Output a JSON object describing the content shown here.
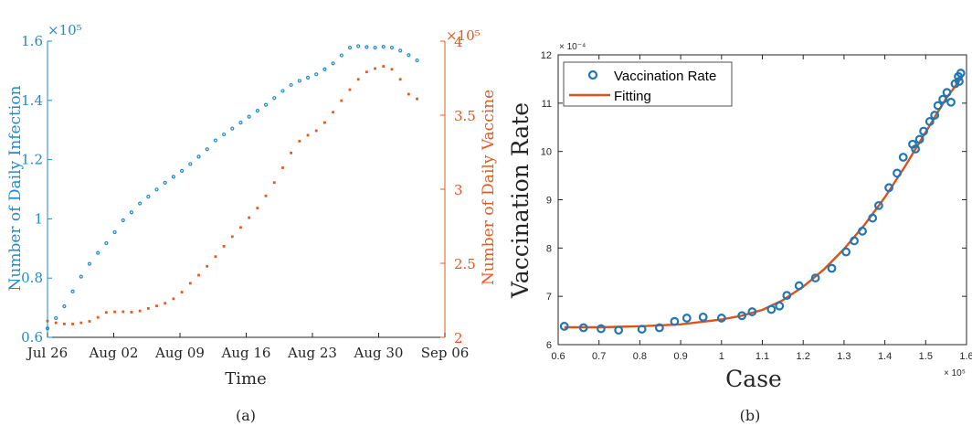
{
  "panels": {
    "a": {
      "caption": "(a)"
    },
    "b": {
      "caption": "(b)"
    }
  },
  "colors": {
    "infection": "#1f8bc9",
    "vaccine": "#e5581e",
    "rate_marker": "#1f77b4",
    "fitting": "#d9531e",
    "axis": "#262626"
  },
  "chart_data": [
    {
      "type": "scatter",
      "panel": "a",
      "xlabel": "Time",
      "ylabel_left": "Number of Daily Infection",
      "ylabel_right": "Number of Daily Vaccine",
      "left_exponent_label": "×10⁵",
      "right_exponent_label": "×10⁵",
      "x_ticks": [
        "Jul 26",
        "Aug 02",
        "Aug 09",
        "Aug 16",
        "Aug 23",
        "Aug 30",
        "Sep 06"
      ],
      "x_range_days": [
        0,
        42
      ],
      "ylim_left": [
        0.6,
        1.6
      ],
      "yticks_left": [
        "0.6",
        "0.8",
        "1",
        "1.2",
        "1.4",
        "1.6"
      ],
      "ylim_right": [
        2,
        4
      ],
      "yticks_right": [
        "2",
        "2.5",
        "3",
        "3.5",
        "4"
      ],
      "series": [
        {
          "axis": "left",
          "values": [
            0.63,
            0.665,
            0.705,
            0.755,
            0.805,
            0.848,
            0.885,
            0.918,
            0.955,
            0.995,
            1.022,
            1.052,
            1.075,
            1.099,
            1.122,
            1.142,
            1.162,
            1.185,
            1.21,
            1.235,
            1.265,
            1.285,
            1.305,
            1.325,
            1.345,
            1.365,
            1.385,
            1.408,
            1.432,
            1.452,
            1.466,
            1.477,
            1.488,
            1.505,
            1.525,
            1.552,
            1.578,
            1.583,
            1.58,
            1.578,
            1.581,
            1.578,
            1.568,
            1.553,
            1.535
          ]
        },
        {
          "axis": "right",
          "values": [
            2.11,
            2.098,
            2.09,
            2.09,
            2.098,
            2.108,
            2.135,
            2.168,
            2.172,
            2.173,
            2.17,
            2.178,
            2.195,
            2.212,
            2.23,
            2.26,
            2.305,
            2.365,
            2.42,
            2.48,
            2.545,
            2.615,
            2.68,
            2.742,
            2.808,
            2.873,
            2.955,
            3.045,
            3.145,
            3.245,
            3.325,
            3.365,
            3.395,
            3.45,
            3.52,
            3.598,
            3.672,
            3.742,
            3.792,
            3.815,
            3.83,
            3.81,
            3.742,
            3.642,
            3.61
          ]
        }
      ]
    },
    {
      "type": "scatter",
      "panel": "b",
      "xlabel": "Case",
      "ylabel": "Vaccination Rate",
      "x_exponent_label": "× 10⁵",
      "y_exponent_label": "× 10⁻⁴",
      "xlim": [
        0.6,
        1.6
      ],
      "xticks": [
        "0.6",
        "0.7",
        "0.8",
        "0.9",
        "1",
        "1.1",
        "1.2",
        "1.3",
        "1.4",
        "1.5",
        "1.6"
      ],
      "ylim": [
        6,
        12
      ],
      "yticks": [
        "6",
        "7",
        "8",
        "9",
        "10",
        "11",
        "12"
      ],
      "legend": {
        "position": "top-left",
        "entries": [
          "Vaccination Rate",
          "Fitting"
        ]
      },
      "series": [
        {
          "name": "Vaccination Rate",
          "kind": "markers",
          "x": [
            0.615,
            0.662,
            0.705,
            0.748,
            0.805,
            0.848,
            0.885,
            0.915,
            0.955,
            1.0,
            1.05,
            1.075,
            1.122,
            1.142,
            1.16,
            1.19,
            1.23,
            1.27,
            1.305,
            1.325,
            1.345,
            1.37,
            1.385,
            1.41,
            1.43,
            1.445,
            1.468,
            1.475,
            1.485,
            1.495,
            1.51,
            1.522,
            1.53,
            1.542,
            1.552,
            1.562,
            1.572,
            1.58,
            1.582,
            1.586
          ],
          "y": [
            6.38,
            6.35,
            6.33,
            6.3,
            6.32,
            6.35,
            6.48,
            6.55,
            6.57,
            6.55,
            6.6,
            6.68,
            6.73,
            6.8,
            7.02,
            7.22,
            7.38,
            7.58,
            7.92,
            8.15,
            8.35,
            8.62,
            8.88,
            9.25,
            9.55,
            9.88,
            10.15,
            10.05,
            10.25,
            10.42,
            10.62,
            10.75,
            10.95,
            11.08,
            11.22,
            11.02,
            11.4,
            11.55,
            11.45,
            11.62
          ]
        },
        {
          "name": "Fitting",
          "kind": "line",
          "x": [
            0.615,
            0.7,
            0.8,
            0.9,
            1.0,
            1.05,
            1.1,
            1.15,
            1.2,
            1.25,
            1.3,
            1.35,
            1.4,
            1.45,
            1.5,
            1.55,
            1.59
          ],
          "y": [
            6.36,
            6.36,
            6.38,
            6.42,
            6.52,
            6.6,
            6.72,
            6.92,
            7.2,
            7.55,
            7.98,
            8.48,
            9.05,
            9.7,
            10.4,
            11.1,
            11.55
          ]
        }
      ]
    }
  ]
}
